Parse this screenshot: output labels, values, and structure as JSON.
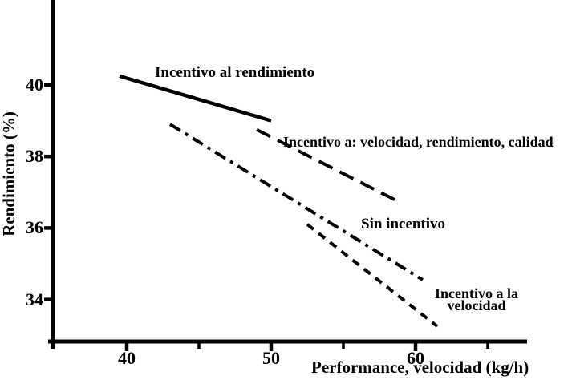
{
  "chart_data": {
    "type": "line",
    "title": "",
    "xlabel": "Performance, velocidad (kg/h)",
    "ylabel": "Rendimiento  (%)",
    "xlim": [
      35,
      67.7
    ],
    "ylim": [
      32.8,
      42.4
    ],
    "grid": false,
    "legend_position": "inline-annotations",
    "x_major_ticks": [
      {
        "value": 40,
        "label": "40"
      },
      {
        "value": 50,
        "label": "50"
      },
      {
        "value": 60,
        "label": "60"
      }
    ],
    "x_minor_ticks": [
      45,
      55,
      65
    ],
    "y_major_ticks": [
      {
        "value": 40,
        "label": "40"
      },
      {
        "value": 38,
        "label": "38"
      },
      {
        "value": 36,
        "label": "36"
      },
      {
        "value": 34,
        "label": "34"
      }
    ],
    "series": [
      {
        "name": "Incentivo al rendimiento",
        "style": "solid",
        "points": [
          [
            39.5,
            40.25
          ],
          [
            50,
            39.0
          ]
        ]
      },
      {
        "name": "Incentivo a: velocidad, rendimiento, calidad",
        "style": "long-dash",
        "points": [
          [
            49,
            38.75
          ],
          [
            59,
            36.7
          ]
        ]
      },
      {
        "name": "Sin incentivo",
        "style": "dash-dot",
        "points": [
          [
            43,
            38.9
          ],
          [
            60.5,
            34.55
          ]
        ]
      },
      {
        "name": "Incentivo a la velocidad",
        "style": "short-dash",
        "points": [
          [
            52.5,
            36.1
          ],
          [
            61.5,
            33.25
          ]
        ]
      }
    ]
  },
  "annotations": {
    "shortdash_label_line1": "Incentivo a la",
    "shortdash_label_line2": "velocidad"
  },
  "colors": {
    "ink": "#000000",
    "background": "#ffffff"
  }
}
